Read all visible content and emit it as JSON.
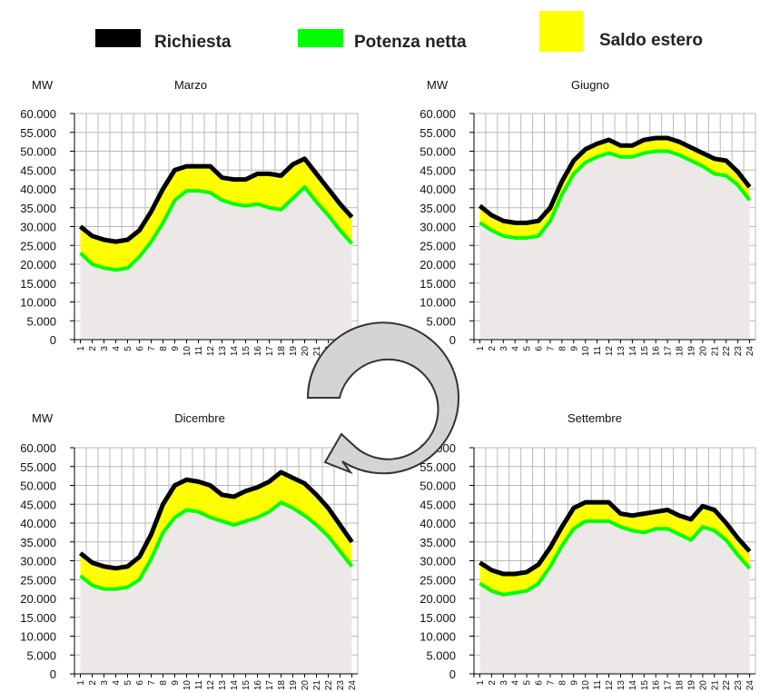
{
  "legend": [
    {
      "label": "Richiesta",
      "color": "#000000"
    },
    {
      "label": "Potenza netta",
      "color": "#00ff00"
    },
    {
      "label": "Saldo estero",
      "color": "#ffff00"
    }
  ],
  "colors": {
    "area_fill": "#ece8e8",
    "grid": "#b8b8b8",
    "cycle_arrow_fill": "#d4d4d4",
    "cycle_arrow_stroke": "#333333"
  },
  "chart_data": [
    {
      "type": "area",
      "title": "Marzo",
      "ylabel": "MW",
      "ylim": [
        0,
        60000
      ],
      "yticks": [
        "0",
        "5.000",
        "10.000",
        "15.000",
        "20.000",
        "25.000",
        "30.000",
        "35.000",
        "40.000",
        "45.000",
        "50.000",
        "55.000",
        "60.000"
      ],
      "x": [
        "1",
        "2",
        "3",
        "4",
        "5",
        "6",
        "7",
        "8",
        "9",
        "10",
        "11",
        "12",
        "13",
        "14",
        "15",
        "16",
        "17",
        "18",
        "19",
        "20",
        "21",
        "22",
        "23",
        "24"
      ],
      "series": [
        {
          "name": "Richiesta",
          "values": [
            30000,
            27500,
            26500,
            26000,
            26500,
            29000,
            34000,
            40000,
            45000,
            46000,
            46000,
            46000,
            43000,
            42500,
            42500,
            44000,
            44000,
            43500,
            46500,
            48000,
            44000,
            40000,
            36000,
            32500
          ]
        },
        {
          "name": "Potenza netta",
          "values": [
            23000,
            20000,
            19000,
            18500,
            19000,
            22000,
            26000,
            31000,
            37000,
            39500,
            39500,
            39000,
            37000,
            36000,
            35500,
            36000,
            35000,
            34500,
            37500,
            40500,
            36500,
            33000,
            29000,
            25500
          ]
        }
      ]
    },
    {
      "type": "area",
      "title": "Giugno",
      "ylabel": "MW",
      "ylim": [
        0,
        60000
      ],
      "yticks": [
        "0",
        "5.000",
        "10.000",
        "15.000",
        "20.000",
        "25.000",
        "30.000",
        "35.000",
        "40.000",
        "45.000",
        "50.000",
        "55.000",
        "60.000"
      ],
      "x": [
        "1",
        "2",
        "3",
        "4",
        "5",
        "6",
        "7",
        "8",
        "9",
        "10",
        "11",
        "12",
        "13",
        "14",
        "15",
        "16",
        "17",
        "18",
        "19",
        "20",
        "21",
        "22",
        "23",
        "24"
      ],
      "series": [
        {
          "name": "Richiesta",
          "values": [
            35500,
            33000,
            31500,
            31000,
            31000,
            31500,
            35000,
            42000,
            47500,
            50500,
            52000,
            53000,
            51500,
            51500,
            53000,
            53500,
            53500,
            52500,
            51000,
            49500,
            48000,
            47500,
            44500,
            40500
          ]
        },
        {
          "name": "Potenza netta",
          "values": [
            31000,
            29000,
            27500,
            27000,
            27000,
            27500,
            31500,
            38500,
            44000,
            47000,
            48500,
            49500,
            48500,
            48500,
            49500,
            50000,
            50000,
            49000,
            47500,
            46000,
            44000,
            43500,
            41000,
            37000
          ]
        }
      ]
    },
    {
      "type": "area",
      "title": "Dicembre",
      "ylabel": "MW",
      "ylim": [
        0,
        60000
      ],
      "yticks": [
        "0",
        "5.000",
        "10.000",
        "15.000",
        "20.000",
        "25.000",
        "30.000",
        "35.000",
        "40.000",
        "45.000",
        "50.000",
        "55.000",
        "60.000"
      ],
      "x": [
        "1",
        "2",
        "3",
        "4",
        "5",
        "6",
        "7",
        "8",
        "9",
        "10",
        "11",
        "12",
        "13",
        "14",
        "15",
        "16",
        "17",
        "18",
        "19",
        "20",
        "21",
        "22",
        "23",
        "24"
      ],
      "series": [
        {
          "name": "Richiesta",
          "values": [
            32000,
            29500,
            28500,
            28000,
            28500,
            31000,
            37000,
            45000,
            50000,
            51500,
            51000,
            50000,
            47500,
            47000,
            48500,
            49500,
            51000,
            53500,
            52000,
            50500,
            47500,
            44000,
            39500,
            35000
          ]
        },
        {
          "name": "Potenza netta",
          "values": [
            26000,
            23500,
            22500,
            22500,
            23000,
            25000,
            30500,
            37500,
            41500,
            43500,
            43000,
            41500,
            40500,
            39500,
            40500,
            41500,
            43000,
            45500,
            44000,
            42000,
            39500,
            36500,
            32500,
            28500
          ]
        }
      ]
    },
    {
      "type": "area",
      "title": "Settembre",
      "ylabel": "",
      "ylim": [
        0,
        60000
      ],
      "yticks": [
        "0",
        "5.000",
        "10.000",
        "15.000",
        "20.000",
        "25.000",
        "30.000",
        "35.000",
        "40.000",
        "45.000",
        "50.000",
        "55.000",
        "60.000"
      ],
      "x": [
        "1",
        "2",
        "3",
        "4",
        "5",
        "6",
        "7",
        "8",
        "9",
        "10",
        "11",
        "12",
        "13",
        "14",
        "15",
        "16",
        "17",
        "18",
        "19",
        "20",
        "21",
        "22",
        "23",
        "24"
      ],
      "series": [
        {
          "name": "Richiesta",
          "values": [
            29500,
            27500,
            26500,
            26500,
            27000,
            29000,
            33500,
            39000,
            44000,
            45500,
            45500,
            45500,
            42500,
            42000,
            42500,
            43000,
            43500,
            42000,
            41000,
            44500,
            43500,
            40000,
            36000,
            32500
          ]
        },
        {
          "name": "Potenza netta",
          "values": [
            24000,
            22000,
            21000,
            21500,
            22000,
            24000,
            28500,
            34000,
            38500,
            40500,
            40500,
            40500,
            39000,
            38000,
            37500,
            38500,
            38500,
            37000,
            35500,
            39000,
            38000,
            35500,
            31500,
            28000
          ]
        }
      ]
    }
  ]
}
